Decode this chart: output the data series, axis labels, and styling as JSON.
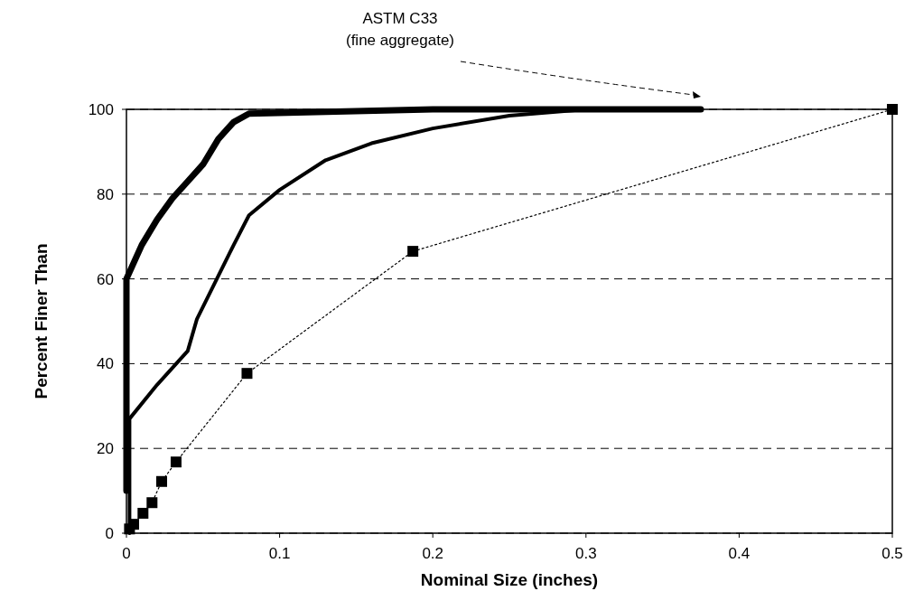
{
  "chart_data": {
    "type": "line",
    "xlabel": "Nominal Size (inches)",
    "ylabel": "Percent Finer Than",
    "annotations": [
      "ASTM C33",
      "(fine aggregate)"
    ],
    "xlim": [
      0,
      0.5
    ],
    "xticks": [
      0,
      0.1,
      0.2,
      0.3,
      0.4,
      0.5
    ],
    "ylim": [
      0,
      100
    ],
    "yticks": [
      0,
      20,
      40,
      60,
      80,
      100
    ],
    "grid": "y",
    "series": [
      {
        "color": "#000000",
        "x": [
          0,
          0,
          0.01,
          0.02,
          0.03,
          0.04,
          0.05,
          0.06,
          0.07,
          0.08,
          0.1,
          0.12,
          0.14,
          0.16,
          0.2,
          0.3,
          0.375
        ],
        "values": [
          10,
          60,
          68,
          74,
          79,
          83,
          87,
          93,
          97,
          99,
          null,
          null,
          null,
          null,
          100,
          100,
          100
        ]
      },
      {
        "color": "#000000",
        "x": [
          0.002,
          0.002,
          0.02,
          0.04,
          0.046,
          0.059,
          0.07,
          0.08,
          0.1,
          0.13,
          0.16,
          0.2,
          0.25,
          0.3,
          0.375
        ],
        "values": [
          0,
          27,
          35,
          43,
          50.5,
          60,
          68,
          75,
          81,
          88,
          92,
          95.5,
          98.5,
          100,
          100
        ]
      },
      {
        "color": "#000000",
        "marker": "square",
        "line_style": "dotted",
        "x": [
          0.002,
          0.0047,
          0.0108,
          0.0167,
          0.023,
          0.0324,
          0.0787,
          0.187,
          0.5
        ],
        "values": [
          1,
          2.1,
          4.7,
          7.2,
          12.2,
          16.8,
          37.7,
          66.5,
          100
        ]
      }
    ]
  }
}
